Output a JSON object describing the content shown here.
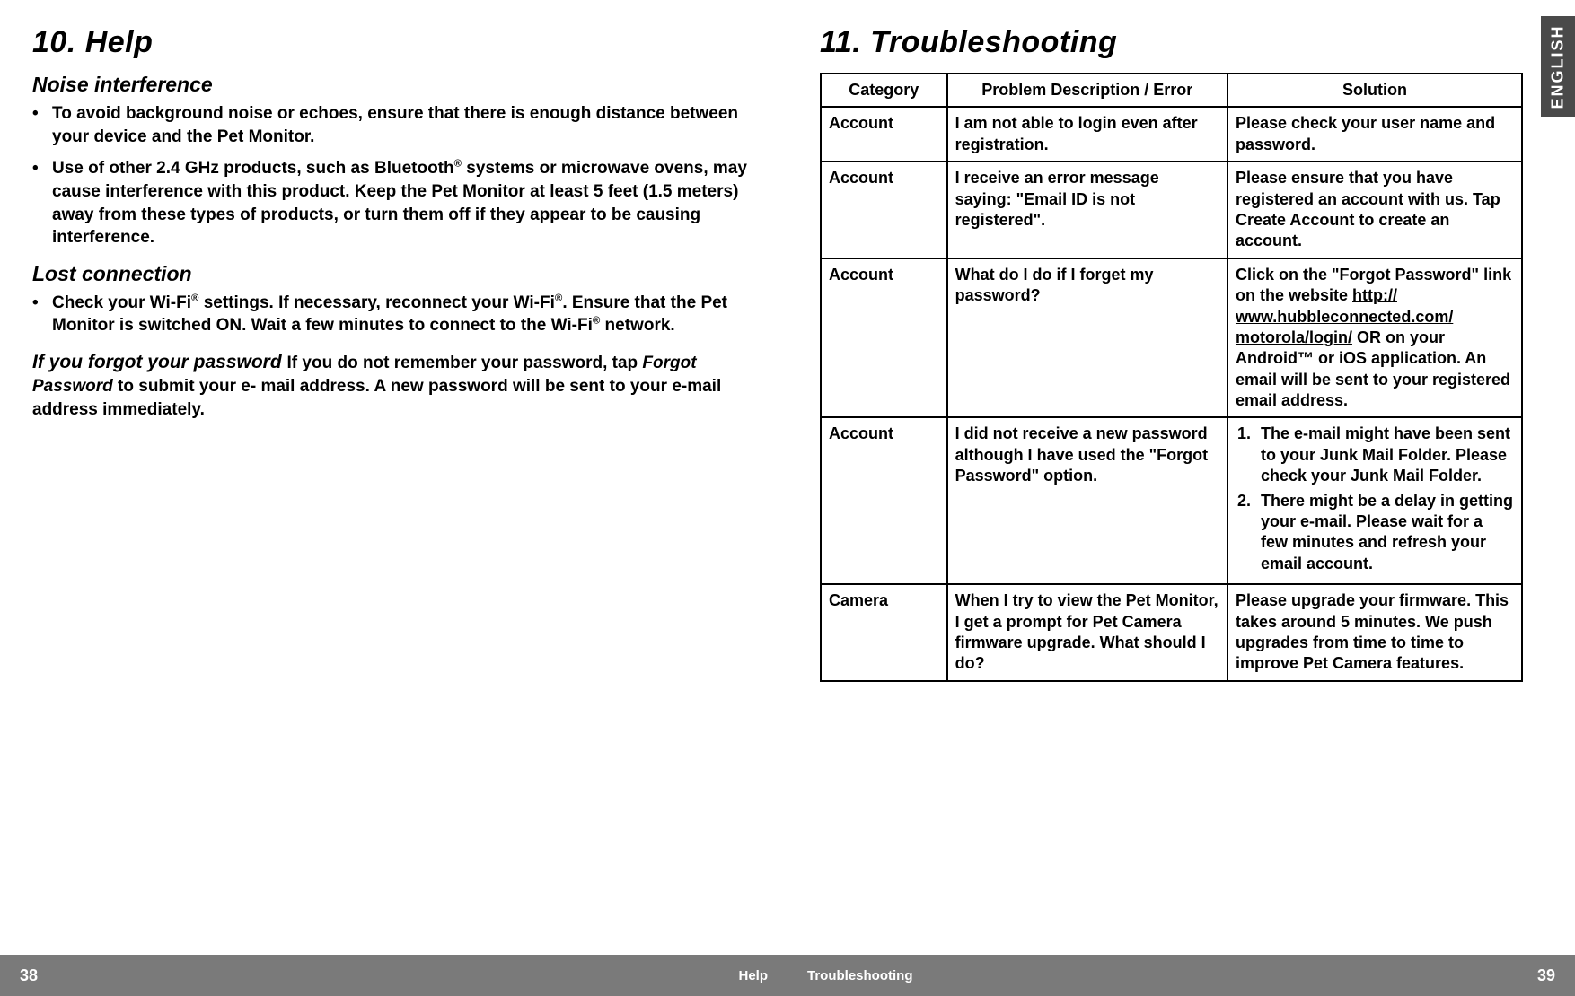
{
  "left": {
    "title": "10. Help",
    "sub1": "Noise interference",
    "bullet1a": "To avoid background noise or echoes, ensure that there is enough distance between your device and the Pet Monitor.",
    "bullet1b_pre": "Use of other 2.4 GHz products, such as Bluetooth",
    "bullet1b_post": " systems or microwave ovens, may cause interference with this product. Keep the Pet Monitor at least 5 feet (1.5 meters) away from these types of products, or turn them off if they appear to be causing interference.",
    "sub2": "Lost connection",
    "bullet2_pre": "Check your Wi-Fi",
    "bullet2_mid1": " settings. If necessary, reconnect your Wi-Fi",
    "bullet2_mid2": ". Ensure that the Pet Monitor is switched ON. Wait a few minutes to connect to the Wi-Fi",
    "bullet2_end": " network.",
    "forgot_lead": "If you forgot your password ",
    "forgot_body_a": "If you do not remember your password, tap ",
    "forgot_body_italic": "Forgot Password",
    "forgot_body_b": " to submit your e- mail address. A new password will be sent to your e-mail address immediately.",
    "footer_page": "38",
    "footer_label": "Help"
  },
  "right": {
    "title": "11. Troubleshooting",
    "lang": "ENGLISH",
    "headers": {
      "c1": "Category",
      "c2": "Problem Description / Error",
      "c3": "Solution"
    },
    "rows": [
      {
        "cat": "Account",
        "prob": "I am not able to login even after registration.",
        "sol": "Please check your user name and password."
      },
      {
        "cat": "Account",
        "prob": "I receive an error message saying: \"Email ID is not registered\".",
        "sol": "Please ensure that you have registered an account with us. Tap Create Account to create an account."
      },
      {
        "cat": "Account",
        "prob": "What do I do if I forget my password?",
        "sol_pre": "Click on the \"Forgot Password\" link on the website ",
        "sol_link1": "http://",
        "sol_link2": "www.hubbleconnected.com/",
        "sol_link3": "motorola/login/",
        "sol_post": " OR on your Android™ or iOS application. An email will be sent to your registered email address."
      },
      {
        "cat": "Account",
        "prob": "I did not receive a new password although I have used the \"Forgot Password\" option.",
        "sol_li1": "The e-mail might have been sent to your Junk Mail Folder. Please check your Junk Mail Folder.",
        "sol_li2": "There might be a delay in getting your e-mail. Please wait for a few minutes and refresh your email account."
      },
      {
        "cat": "Camera",
        "prob": "When I try to view the Pet Monitor, I get a prompt for Pet Camera firmware upgrade. What should I do?",
        "sol": "Please upgrade your firmware. This takes around 5 minutes. We push upgrades from time to time to improve Pet Camera features."
      }
    ],
    "footer_page": "39",
    "footer_label": "Troubleshooting"
  }
}
